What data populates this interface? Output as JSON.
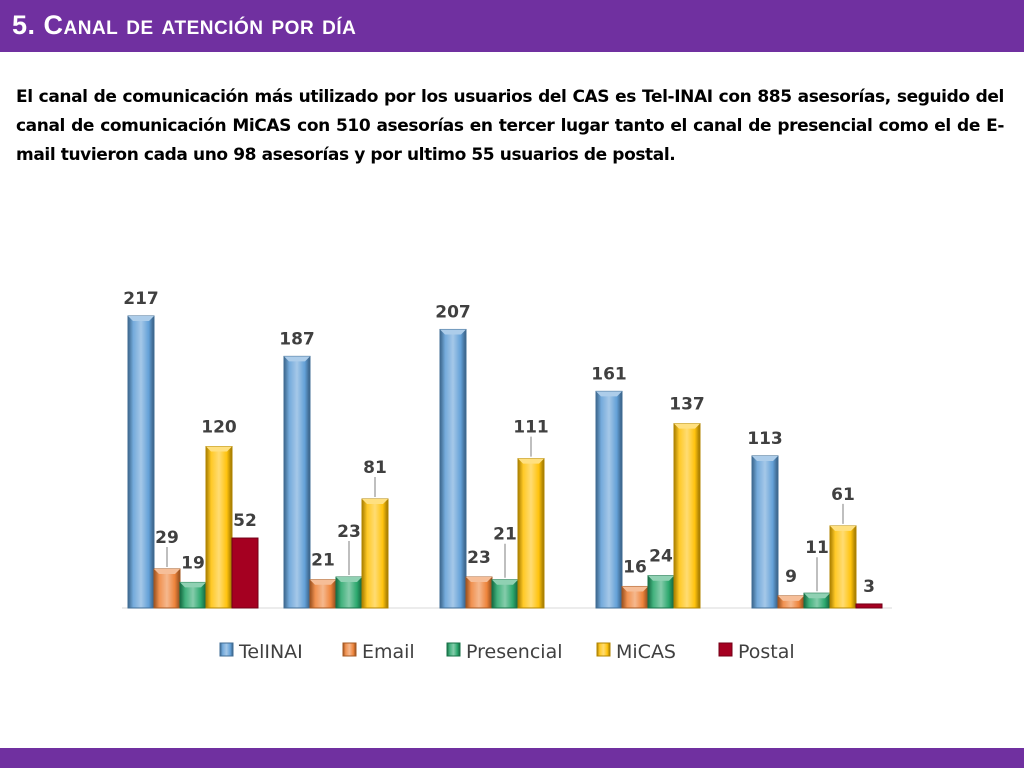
{
  "slide": {
    "title": "5. Canal de atención por día",
    "paragraph": "El canal de comunicación más utilizado por los usuarios del CAS es Tel-INAI con 885 asesorías, seguido del canal de comunicación MiCAS con 510 asesorías en tercer lugar tanto el canal de presencial como el de  E-mail tuvieron cada uno 98 asesorías y por ultimo 55 usuarios de postal."
  },
  "colors": {
    "title_bar": "#7030a0",
    "TelINAI": "#5b9bd5",
    "Email": "#ed7d31",
    "Presencial": "#21a366",
    "MiCAS": "#ffc000",
    "Postal": "#a50021"
  },
  "chart_data": {
    "type": "bar",
    "title": "",
    "xlabel": "",
    "ylabel": "",
    "categories": [
      "",
      "",
      "",
      "",
      ""
    ],
    "ylim": [
      0,
      230
    ],
    "grid": false,
    "legend_position": "bottom",
    "series": [
      {
        "name": "TelINAI",
        "values": [
          217,
          187,
          207,
          161,
          113
        ]
      },
      {
        "name": "Email",
        "values": [
          29,
          21,
          23,
          16,
          9
        ]
      },
      {
        "name": "Presencial",
        "values": [
          19,
          23,
          21,
          24,
          11
        ]
      },
      {
        "name": "MiCAS",
        "values": [
          120,
          81,
          111,
          137,
          61
        ]
      },
      {
        "name": "Postal",
        "values": [
          52,
          null,
          null,
          null,
          3
        ]
      }
    ]
  }
}
